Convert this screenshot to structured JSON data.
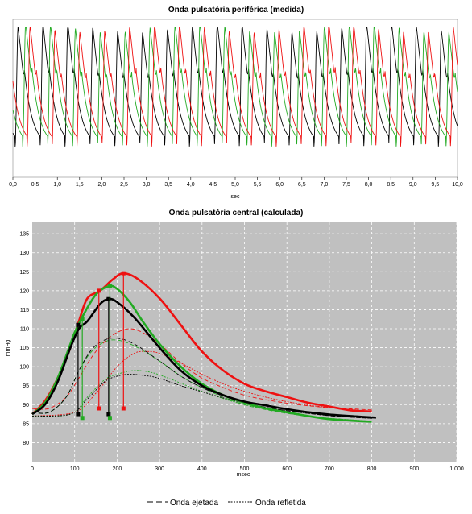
{
  "chart_data": [
    {
      "type": "line",
      "title": "Onda pulsatória periférica (medida)",
      "xlabel": "sec",
      "ylabel": "",
      "xlim": [
        0,
        10
      ],
      "ylim": [
        0,
        1
      ],
      "grid": false,
      "xticks": [
        "0,0",
        "0,5",
        "1,0",
        "1,5",
        "2,0",
        "2,5",
        "3,0",
        "3,5",
        "4,0",
        "4,5",
        "5,0",
        "5,5",
        "6,0",
        "6,5",
        "7,0",
        "7,5",
        "8,0",
        "8,5",
        "9,0",
        "9,5",
        "10,0"
      ],
      "series": [
        {
          "color": "#000000",
          "peaks": [
            0.05,
            0.95,
            1.95,
            2.95,
            3.95,
            4.95,
            5.95,
            6.95,
            7.95,
            8.95,
            9.85
          ],
          "period": 0.56,
          "phase": 0.05
        },
        {
          "color": "#22aa22",
          "period": 0.56,
          "phase": 0.22
        },
        {
          "color": "#ee1111",
          "period": 0.56,
          "phase": 0.32
        }
      ]
    },
    {
      "type": "line",
      "title": "Onda pulsatória central (calculada)",
      "xlabel": "msec",
      "ylabel": "mmHg",
      "xlim": [
        0,
        1000
      ],
      "ylim": [
        75,
        138
      ],
      "grid": true,
      "xticks": [
        "0",
        "100",
        "200",
        "300",
        "400",
        "500",
        "600",
        "700",
        "800",
        "900",
        "1.000"
      ],
      "yticks": [
        "80",
        "85",
        "90",
        "95",
        "100",
        "105",
        "110",
        "115",
        "120",
        "125",
        "130",
        "135"
      ],
      "series": [
        {
          "style": "solid-thick",
          "color": "#ee1111",
          "x": [
            0,
            30,
            60,
            90,
            110,
            130,
            160,
            190,
            215,
            250,
            300,
            350,
            400,
            450,
            500,
            550,
            600,
            650,
            700,
            750,
            800
          ],
          "y": [
            87.5,
            91,
            97,
            105,
            112,
            118,
            120,
            123,
            124.6,
            123,
            118,
            111,
            104,
            99,
            95.5,
            93.5,
            92,
            90.5,
            89.5,
            88.5,
            88.2
          ]
        },
        {
          "style": "solid-thick",
          "color": "#22aa22",
          "x": [
            0,
            30,
            60,
            90,
            100,
            120,
            150,
            180,
            200,
            230,
            260,
            300,
            350,
            400,
            450,
            500,
            550,
            600,
            650,
            700,
            750,
            800
          ],
          "y": [
            87.5,
            90.5,
            97,
            106,
            109,
            113.5,
            119,
            121.2,
            120.5,
            117,
            112,
            106,
            100,
            95.5,
            92.5,
            90.5,
            89,
            88,
            87,
            86.2,
            85.8,
            85.5
          ]
        },
        {
          "style": "solid-thick",
          "color": "#000000",
          "x": [
            0,
            30,
            60,
            90,
            110,
            130,
            160,
            180,
            200,
            240,
            300,
            350,
            400,
            450,
            500,
            550,
            600,
            650,
            700,
            750,
            810
          ],
          "y": [
            87.5,
            90,
            96,
            105,
            110,
            112,
            116.5,
            117.8,
            117,
            113,
            105,
            99,
            95,
            92.5,
            90.8,
            89.8,
            88.8,
            88,
            87.4,
            87,
            86.6
          ]
        },
        {
          "style": "dash",
          "color": "#ee1111",
          "x": [
            0,
            40,
            80,
            110,
            140,
            170,
            200,
            230,
            260,
            300,
            350,
            400,
            450,
            500,
            550,
            600,
            650,
            700,
            750,
            800
          ],
          "y": [
            89,
            89,
            92,
            97,
            102.5,
            106.5,
            109,
            110,
            109,
            106,
            101,
            97,
            94.5,
            92.5,
            91.3,
            90.4,
            89.7,
            89.2,
            88.9,
            88.6
          ]
        },
        {
          "style": "dash",
          "color": "#22aa22",
          "x": [
            0,
            40,
            80,
            110,
            140,
            170,
            200,
            240,
            300,
            350,
            400,
            450,
            500,
            550,
            600,
            650,
            700,
            750,
            800
          ],
          "y": [
            88,
            88,
            92,
            99,
            104,
            106.5,
            107,
            105.5,
            101.5,
            97.5,
            94.5,
            92,
            90,
            88.7,
            87.7,
            87,
            86.4,
            86,
            85.6
          ]
        },
        {
          "style": "dash",
          "color": "#000000",
          "x": [
            0,
            40,
            80,
            110,
            140,
            170,
            200,
            240,
            300,
            350,
            400,
            450,
            500,
            550,
            600,
            650,
            700,
            750,
            800
          ],
          "y": [
            88,
            88,
            92,
            99,
            104.5,
            107,
            107.5,
            106,
            101.5,
            97.5,
            94.5,
            92.3,
            90.5,
            89.3,
            88.4,
            87.7,
            87.1,
            86.7,
            86.4
          ]
        },
        {
          "style": "dot",
          "color": "#ee1111",
          "x": [
            0,
            100,
            150,
            200,
            240,
            270,
            300,
            350,
            400,
            450,
            500,
            550,
            600,
            650,
            700,
            750,
            800
          ],
          "y": [
            87,
            88,
            93,
            100,
            103.5,
            104,
            103.5,
            101,
            98,
            95.5,
            93.5,
            92,
            90.8,
            89.9,
            89.2,
            88.7,
            88.3
          ]
        },
        {
          "style": "dot",
          "color": "#22aa22",
          "x": [
            0,
            90,
            130,
            170,
            200,
            240,
            280,
            320,
            360,
            400,
            450,
            500,
            550,
            600,
            650,
            700,
            750,
            800
          ],
          "y": [
            87,
            87.5,
            92,
            96.5,
            98,
            99,
            98.5,
            97,
            95.2,
            93.5,
            91.6,
            90,
            88.8,
            87.8,
            87,
            86.4,
            86,
            85.6
          ]
        },
        {
          "style": "dot",
          "color": "#000000",
          "x": [
            0,
            90,
            130,
            170,
            200,
            230,
            270,
            300,
            350,
            400,
            450,
            500,
            550,
            600,
            650,
            700,
            750,
            800
          ],
          "y": [
            87,
            87.5,
            91.5,
            96,
            97.5,
            98,
            97.6,
            96.9,
            95,
            93.4,
            91.8,
            90.4,
            89.3,
            88.4,
            87.7,
            87.1,
            86.7,
            86.4
          ]
        }
      ],
      "markers": [
        {
          "color": "#000000",
          "x": 108,
          "y_low": 87.5,
          "y_high": 111
        },
        {
          "color": "#000000",
          "x": 180,
          "y_low": 87.5,
          "y_high": 117.8
        },
        {
          "color": "#22aa22",
          "x": 118,
          "y_low": 86.5,
          "y_high": 112.5
        },
        {
          "color": "#22aa22",
          "x": 183,
          "y_low": 86.5,
          "y_high": 121.2
        },
        {
          "color": "#ee1111",
          "x": 157,
          "y_low": 89,
          "y_high": 120
        },
        {
          "color": "#ee1111",
          "x": 215,
          "y_low": 89,
          "y_high": 124.6
        }
      ],
      "legend": [
        "Onda ejetada",
        "Onda refletida"
      ]
    }
  ]
}
